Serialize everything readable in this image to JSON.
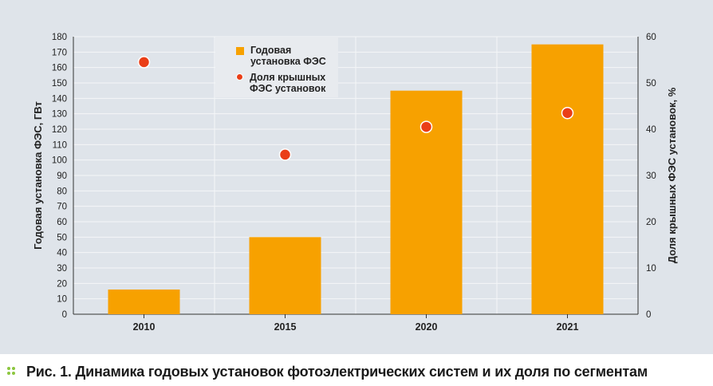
{
  "chart_data": {
    "type": "bar",
    "categories": [
      "2010",
      "2015",
      "2020",
      "2021"
    ],
    "series": [
      {
        "name": "Годовая установка ФЭС",
        "kind": "bar",
        "axis": "left",
        "color": "#f7a100",
        "values": [
          16,
          50,
          145,
          175
        ]
      },
      {
        "name": "Доля крышных ФЭС установок",
        "kind": "scatter",
        "axis": "right",
        "color": "#ea3e17",
        "values": [
          54.5,
          34.5,
          40.5,
          43.5
        ]
      }
    ],
    "y_left": {
      "label": "Годовая установка ФЭС, ГВт",
      "ylim": [
        0,
        180
      ],
      "ticks": [
        "0",
        "10",
        "20",
        "30",
        "40",
        "50",
        "60",
        "70",
        "80",
        "90",
        "100",
        "110",
        "120",
        "130",
        "140",
        "150",
        "160",
        "170",
        "180"
      ]
    },
    "y_right": {
      "label": "Доля крышных ФЭС установок, %",
      "ylim": [
        0,
        60
      ],
      "ticks": [
        "0",
        "10",
        "20",
        "30",
        "40",
        "50",
        "60"
      ]
    },
    "grid": true,
    "legend": {
      "placement": "top-left",
      "entries": [
        "Годовая установка ФЭС",
        "Доля крышных ФЭС установок"
      ]
    }
  },
  "legend": {
    "bar_label_line1": "Годовая",
    "bar_label_line2": "установка ФЭС",
    "dot_label_line1": "Доля крышных",
    "dot_label_line2": "ФЭС установок"
  },
  "caption": {
    "text": "Рис. 1. Динамика годовых установок фотоэлектрических систем и их доля по сегментам",
    "bullet_color": "#8cc63f"
  }
}
